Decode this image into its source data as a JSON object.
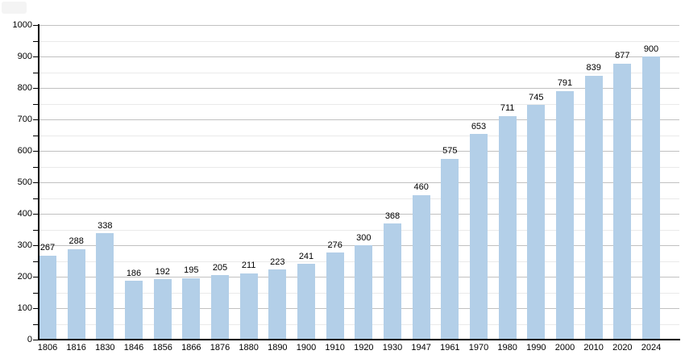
{
  "chart_data": {
    "type": "bar",
    "title": "",
    "xlabel": "",
    "ylabel": "",
    "categories": [
      "1806",
      "1816",
      "1830",
      "1846",
      "1856",
      "1866",
      "1876",
      "1880",
      "1890",
      "1900",
      "1910",
      "1920",
      "1930",
      "1947",
      "1961",
      "1970",
      "1980",
      "1990",
      "2000",
      "2010",
      "2020",
      "2024"
    ],
    "values": [
      267,
      288,
      338,
      186,
      192,
      195,
      205,
      211,
      223,
      241,
      276,
      300,
      368,
      460,
      575,
      653,
      711,
      745,
      791,
      839,
      877,
      900
    ],
    "y_tick_labels": [
      "0",
      "100",
      "200",
      "300",
      "400",
      "500",
      "600",
      "700",
      "800",
      "900",
      "1000"
    ],
    "ylim": [
      0,
      1000
    ],
    "y_major_step": 100,
    "y_minor_step": 50,
    "grid": "horizontal major and minor lines, behind opaque bars",
    "legend": "none",
    "colors": {
      "bar_fill": "#b3cfe8",
      "major_gridline": "#c1c1c1",
      "minor_gridline": "#eaeaea",
      "axis": "#000000",
      "label_text": "#000000",
      "corner_artifact": "#f4f4f4"
    }
  }
}
